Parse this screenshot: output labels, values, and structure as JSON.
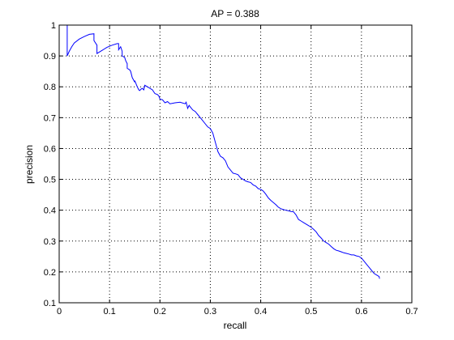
{
  "chart_data": {
    "type": "line",
    "title": "AP = 0.388",
    "xlabel": "recall",
    "ylabel": "precision",
    "xlim": [
      0,
      0.7
    ],
    "ylim": [
      0.1,
      1
    ],
    "xticks": [
      "0",
      "0.1",
      "0.2",
      "0.3",
      "0.4",
      "0.5",
      "0.6",
      "0.7"
    ],
    "yticks": [
      "0.1",
      "0.2",
      "0.3",
      "0.4",
      "0.5",
      "0.6",
      "0.7",
      "0.8",
      "0.9",
      "1"
    ],
    "xtick_values": [
      0,
      0.1,
      0.2,
      0.3,
      0.4,
      0.5,
      0.6,
      0.7
    ],
    "ytick_values": [
      0.1,
      0.2,
      0.3,
      0.4,
      0.5,
      0.6,
      0.7,
      0.8,
      0.9,
      1.0
    ],
    "grid": true,
    "line_color": "#0000ff",
    "series": [
      {
        "x": [
          0.016,
          0.016,
          0.016,
          0.02,
          0.025,
          0.03,
          0.04,
          0.05,
          0.06,
          0.069,
          0.069,
          0.075,
          0.075,
          0.085,
          0.095,
          0.105,
          0.115,
          0.118,
          0.118,
          0.122,
          0.125,
          0.125,
          0.13,
          0.132,
          0.135,
          0.135,
          0.14,
          0.142,
          0.145,
          0.15,
          0.15,
          0.155,
          0.158,
          0.16,
          0.162,
          0.165,
          0.168,
          0.17,
          0.175,
          0.18,
          0.185,
          0.19,
          0.195,
          0.198,
          0.2,
          0.205,
          0.21,
          0.215,
          0.22,
          0.23,
          0.24,
          0.25,
          0.252,
          0.255,
          0.258,
          0.26,
          0.265,
          0.27,
          0.275,
          0.28,
          0.285,
          0.29,
          0.295,
          0.3,
          0.305,
          0.31,
          0.315,
          0.32,
          0.325,
          0.33,
          0.335,
          0.34,
          0.345,
          0.35,
          0.355,
          0.36,
          0.365,
          0.37,
          0.375,
          0.38,
          0.385,
          0.39,
          0.395,
          0.4,
          0.405,
          0.41,
          0.415,
          0.42,
          0.425,
          0.43,
          0.435,
          0.44,
          0.445,
          0.45,
          0.455,
          0.46,
          0.465,
          0.47,
          0.475,
          0.48,
          0.485,
          0.49,
          0.495,
          0.5,
          0.505,
          0.51,
          0.515,
          0.52,
          0.525,
          0.53,
          0.535,
          0.54,
          0.545,
          0.55,
          0.555,
          0.56,
          0.565,
          0.57,
          0.575,
          0.58,
          0.585,
          0.59,
          0.595,
          0.6,
          0.605,
          0.61,
          0.615,
          0.62,
          0.625,
          0.63,
          0.635,
          0.636
        ],
        "y": [
          1.0,
          0.955,
          0.9,
          0.915,
          0.93,
          0.942,
          0.955,
          0.963,
          0.97,
          0.972,
          0.95,
          0.935,
          0.908,
          0.918,
          0.928,
          0.935,
          0.94,
          0.94,
          0.92,
          0.93,
          0.915,
          0.9,
          0.895,
          0.885,
          0.875,
          0.86,
          0.855,
          0.85,
          0.83,
          0.815,
          0.82,
          0.8,
          0.79,
          0.788,
          0.792,
          0.795,
          0.79,
          0.805,
          0.8,
          0.795,
          0.79,
          0.778,
          0.775,
          0.77,
          0.76,
          0.758,
          0.748,
          0.752,
          0.745,
          0.748,
          0.75,
          0.745,
          0.75,
          0.73,
          0.74,
          0.735,
          0.725,
          0.72,
          0.71,
          0.7,
          0.69,
          0.68,
          0.67,
          0.665,
          0.65,
          0.62,
          0.59,
          0.575,
          0.57,
          0.56,
          0.54,
          0.53,
          0.52,
          0.518,
          0.515,
          0.505,
          0.5,
          0.495,
          0.492,
          0.49,
          0.482,
          0.478,
          0.47,
          0.468,
          0.462,
          0.452,
          0.44,
          0.432,
          0.425,
          0.418,
          0.41,
          0.405,
          0.402,
          0.4,
          0.398,
          0.396,
          0.395,
          0.385,
          0.37,
          0.365,
          0.36,
          0.355,
          0.35,
          0.345,
          0.338,
          0.33,
          0.318,
          0.31,
          0.3,
          0.295,
          0.29,
          0.282,
          0.275,
          0.27,
          0.268,
          0.265,
          0.262,
          0.26,
          0.258,
          0.255,
          0.255,
          0.252,
          0.25,
          0.245,
          0.235,
          0.225,
          0.215,
          0.205,
          0.195,
          0.19,
          0.185,
          0.178
        ]
      }
    ]
  }
}
